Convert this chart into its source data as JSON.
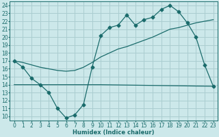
{
  "xlabel": "Humidex (Indice chaleur)",
  "bg_color": "#cce8ea",
  "grid_color": "#aacdd0",
  "line_color": "#1a6b6b",
  "ylim": [
    9.5,
    24.5
  ],
  "xlim": [
    -0.5,
    23.5
  ],
  "yticks": [
    10,
    11,
    12,
    13,
    14,
    15,
    16,
    17,
    18,
    19,
    20,
    21,
    22,
    23,
    24
  ],
  "xticks": [
    0,
    1,
    2,
    3,
    4,
    5,
    6,
    7,
    8,
    9,
    10,
    11,
    12,
    13,
    14,
    15,
    16,
    17,
    18,
    19,
    20,
    21,
    22,
    23
  ],
  "series1_x": [
    0,
    1,
    2,
    3,
    4,
    5,
    6,
    7,
    8,
    9,
    10,
    11,
    12,
    13,
    14,
    15,
    16,
    17,
    18,
    19,
    20,
    21,
    22,
    23
  ],
  "series1_y": [
    17.0,
    16.2,
    14.8,
    14.0,
    13.0,
    11.0,
    9.8,
    10.2,
    11.5,
    16.2,
    20.2,
    21.2,
    21.5,
    22.8,
    21.5,
    22.2,
    22.5,
    23.5,
    24.0,
    23.2,
    21.8,
    20.0,
    16.5,
    13.8
  ],
  "series2_x": [
    0,
    1,
    2,
    3,
    4,
    5,
    6,
    7,
    8,
    9,
    10,
    11,
    12,
    13,
    14,
    15,
    16,
    17,
    18,
    19,
    20,
    21,
    22,
    23
  ],
  "series2_y": [
    17.0,
    16.8,
    16.5,
    16.2,
    16.0,
    15.8,
    15.7,
    15.8,
    16.2,
    16.8,
    17.5,
    18.0,
    18.5,
    18.8,
    19.2,
    19.6,
    20.0,
    20.5,
    21.0,
    21.2,
    21.5,
    21.8,
    22.0,
    22.2
  ],
  "series3_x": [
    0,
    3,
    10,
    23
  ],
  "series3_y": [
    14.0,
    14.0,
    14.0,
    13.8
  ],
  "marker": "D",
  "markersize": 2.5,
  "tick_fontsize": 5.5,
  "xlabel_fontsize": 6.0
}
